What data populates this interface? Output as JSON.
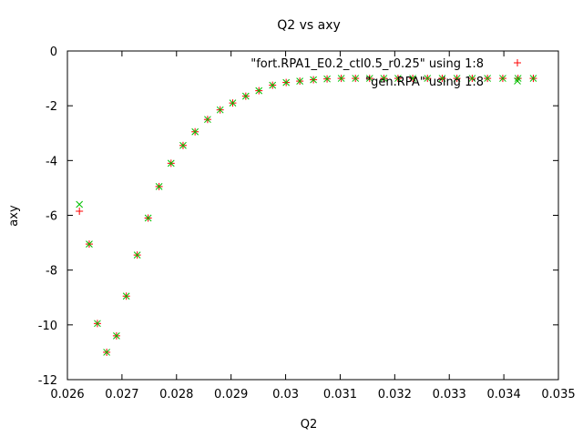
{
  "chart_data": {
    "type": "scatter",
    "title": "Q2 vs axy",
    "xlabel": "Q2",
    "ylabel": "axy",
    "xlim": [
      0.026,
      0.035
    ],
    "ylim": [
      -12,
      0
    ],
    "xticks": [
      "0.026",
      "0.027",
      "0.028",
      "0.029",
      "0.03",
      "0.031",
      "0.032",
      "0.033",
      "0.034",
      "0.035"
    ],
    "yticks": [
      "0",
      "-2",
      "-4",
      "-6",
      "-8",
      "-10",
      "-12"
    ],
    "grid": false,
    "legend_position": "top-right",
    "series": [
      {
        "name": "\"fort.RPA1_E0.2_ctl0.5_r0.25\" using 1:8",
        "marker": "plus",
        "color": "#ff0000",
        "x": [
          0.02622,
          0.0264,
          0.02655,
          0.02672,
          0.0269,
          0.02708,
          0.02728,
          0.02748,
          0.02768,
          0.0279,
          0.02812,
          0.02834,
          0.02857,
          0.0288,
          0.02903,
          0.02927,
          0.02951,
          0.02976,
          0.03001,
          0.03026,
          0.03051,
          0.03076,
          0.03102,
          0.03128,
          0.03154,
          0.0318,
          0.03206,
          0.03233,
          0.0326,
          0.03287,
          0.03314,
          0.03342,
          0.0337,
          0.03398,
          0.03426,
          0.03454
        ],
        "y": [
          -5.85,
          -7.05,
          -9.95,
          -11.0,
          -10.4,
          -8.95,
          -7.45,
          -6.1,
          -4.95,
          -4.1,
          -3.45,
          -2.95,
          -2.5,
          -2.15,
          -1.9,
          -1.65,
          -1.45,
          -1.25,
          -1.15,
          -1.1,
          -1.05,
          -1.02,
          -1.0,
          -1.0,
          -1.0,
          -1.0,
          -1.0,
          -1.0,
          -1.0,
          -1.0,
          -1.0,
          -1.0,
          -1.0,
          -1.0,
          -1.0,
          -1.0
        ]
      },
      {
        "name": "\"gen.RPA\" using 1:8",
        "marker": "cross",
        "color": "#00c000",
        "x": [
          0.02622,
          0.0264,
          0.02655,
          0.02672,
          0.0269,
          0.02708,
          0.02728,
          0.02748,
          0.02768,
          0.0279,
          0.02812,
          0.02834,
          0.02857,
          0.0288,
          0.02903,
          0.02927,
          0.02951,
          0.02976,
          0.03001,
          0.03026,
          0.03051,
          0.03076,
          0.03102,
          0.03128,
          0.03154,
          0.0318,
          0.03206,
          0.03233,
          0.0326,
          0.03287,
          0.03314,
          0.03342,
          0.0337,
          0.03398,
          0.03426,
          0.03454
        ],
        "y": [
          -5.6,
          -7.05,
          -9.95,
          -11.0,
          -10.4,
          -8.95,
          -7.45,
          -6.1,
          -4.95,
          -4.1,
          -3.45,
          -2.95,
          -2.5,
          -2.15,
          -1.9,
          -1.65,
          -1.45,
          -1.25,
          -1.15,
          -1.1,
          -1.05,
          -1.02,
          -1.0,
          -1.0,
          -1.0,
          -1.0,
          -1.0,
          -1.0,
          -1.0,
          -1.0,
          -1.0,
          -1.0,
          -1.0,
          -1.0,
          -1.0,
          -1.0
        ]
      }
    ]
  }
}
